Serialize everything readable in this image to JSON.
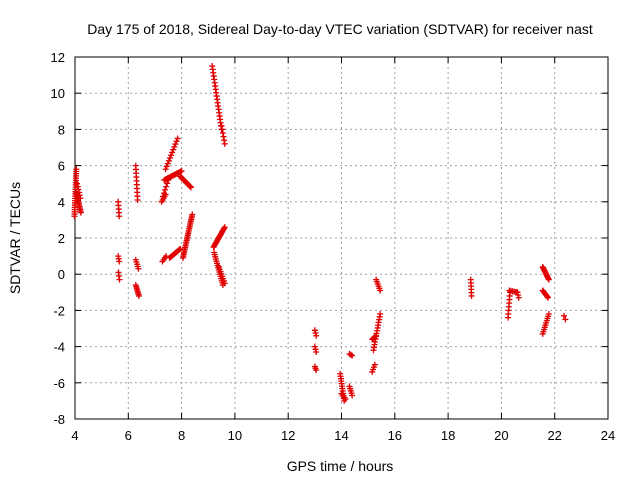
{
  "chart_data": {
    "type": "scatter",
    "title": "Day 175 of 2018, Sidereal Day-to-day VTEC variation (SDTVAR) for receiver nast",
    "xlabel": "GPS time / hours",
    "ylabel": "SDTVAR / TECUs",
    "xlim": [
      4,
      24
    ],
    "ylim": [
      -8,
      12
    ],
    "xticks": [
      4,
      6,
      8,
      10,
      12,
      14,
      16,
      18,
      20,
      22,
      24
    ],
    "yticks": [
      -8,
      -6,
      -4,
      -2,
      0,
      2,
      4,
      6,
      8,
      10,
      12
    ],
    "grid": true,
    "marker": "+",
    "series_color": "#e00000",
    "segments": [
      {
        "x0": 3.98,
        "x1": 4.05,
        "y0": 3.2,
        "y1": 5.8,
        "n": 22
      },
      {
        "x0": 4.05,
        "x1": 4.22,
        "y0": 4.5,
        "y1": 3.4,
        "n": 14
      },
      {
        "x0": 4.08,
        "x1": 4.2,
        "y0": 5.0,
        "y1": 4.2,
        "n": 6
      },
      {
        "x0": 5.62,
        "x1": 5.66,
        "y0": 4.0,
        "y1": 3.2,
        "n": 5
      },
      {
        "x0": 5.62,
        "x1": 5.66,
        "y0": 1.0,
        "y1": 0.7,
        "n": 3
      },
      {
        "x0": 5.63,
        "x1": 5.67,
        "y0": 0.1,
        "y1": -0.3,
        "n": 3
      },
      {
        "x0": 6.28,
        "x1": 6.35,
        "y0": 6.0,
        "y1": 4.1,
        "n": 10
      },
      {
        "x0": 6.28,
        "x1": 6.38,
        "y0": 0.8,
        "y1": 0.3,
        "n": 5
      },
      {
        "x0": 6.28,
        "x1": 6.4,
        "y0": -0.6,
        "y1": -1.2,
        "n": 8
      },
      {
        "x0": 7.25,
        "x1": 7.4,
        "y0": 4.0,
        "y1": 4.4,
        "n": 5
      },
      {
        "x0": 7.28,
        "x1": 7.42,
        "y0": 0.7,
        "y1": 1.0,
        "n": 4
      },
      {
        "x0": 7.4,
        "x1": 7.85,
        "y0": 5.8,
        "y1": 7.5,
        "n": 12
      },
      {
        "x0": 7.35,
        "x1": 8.0,
        "y0": 5.2,
        "y1": 5.7,
        "n": 20
      },
      {
        "x0": 7.3,
        "x1": 7.5,
        "y0": 4.3,
        "y1": 5.2,
        "n": 6
      },
      {
        "x0": 7.55,
        "x1": 7.95,
        "y0": 0.9,
        "y1": 1.4,
        "n": 12
      },
      {
        "x0": 7.95,
        "x1": 8.35,
        "y0": 5.4,
        "y1": 4.8,
        "n": 16
      },
      {
        "x0": 8.05,
        "x1": 8.4,
        "y0": 0.9,
        "y1": 3.3,
        "n": 26
      },
      {
        "x0": 9.15,
        "x1": 9.5,
        "y0": 11.5,
        "y1": 8.0,
        "n": 20
      },
      {
        "x0": 9.5,
        "x1": 9.62,
        "y0": 8.2,
        "y1": 7.2,
        "n": 6
      },
      {
        "x0": 9.2,
        "x1": 9.62,
        "y0": 1.5,
        "y1": 2.6,
        "n": 18
      },
      {
        "x0": 9.22,
        "x1": 9.55,
        "y0": 1.2,
        "y1": -0.6,
        "n": 16
      },
      {
        "x0": 9.4,
        "x1": 9.62,
        "y0": 0.4,
        "y1": -0.5,
        "n": 8
      },
      {
        "x0": 13.0,
        "x1": 13.05,
        "y0": -3.1,
        "y1": -3.4,
        "n": 3
      },
      {
        "x0": 13.0,
        "x1": 13.05,
        "y0": -4.0,
        "y1": -4.3,
        "n": 3
      },
      {
        "x0": 13.0,
        "x1": 13.05,
        "y0": -5.1,
        "y1": -5.3,
        "n": 3
      },
      {
        "x0": 13.95,
        "x1": 14.1,
        "y0": -5.5,
        "y1": -7.0,
        "n": 12
      },
      {
        "x0": 14.0,
        "x1": 14.15,
        "y0": -6.6,
        "y1": -6.9,
        "n": 5
      },
      {
        "x0": 14.3,
        "x1": 14.4,
        "y0": -6.2,
        "y1": -6.7,
        "n": 5
      },
      {
        "x0": 14.3,
        "x1": 14.4,
        "y0": -4.4,
        "y1": -4.5,
        "n": 3
      },
      {
        "x0": 15.15,
        "x1": 15.25,
        "y0": -5.4,
        "y1": -5.0,
        "n": 4
      },
      {
        "x0": 15.2,
        "x1": 15.45,
        "y0": -4.2,
        "y1": -2.2,
        "n": 14
      },
      {
        "x0": 15.15,
        "x1": 15.3,
        "y0": -3.6,
        "y1": -3.4,
        "n": 5
      },
      {
        "x0": 15.3,
        "x1": 15.45,
        "y0": -0.3,
        "y1": -0.9,
        "n": 6
      },
      {
        "x0": 18.85,
        "x1": 18.88,
        "y0": -0.3,
        "y1": -1.2,
        "n": 6
      },
      {
        "x0": 20.25,
        "x1": 20.32,
        "y0": -2.4,
        "y1": -1.0,
        "n": 8
      },
      {
        "x0": 20.3,
        "x1": 20.6,
        "y0": -0.9,
        "y1": -1.0,
        "n": 6
      },
      {
        "x0": 20.6,
        "x1": 20.65,
        "y0": -1.0,
        "y1": -1.3,
        "n": 3
      },
      {
        "x0": 21.55,
        "x1": 21.78,
        "y0": 0.4,
        "y1": -0.3,
        "n": 12
      },
      {
        "x0": 21.55,
        "x1": 21.75,
        "y0": -0.9,
        "y1": -1.3,
        "n": 8
      },
      {
        "x0": 21.55,
        "x1": 21.78,
        "y0": -3.3,
        "y1": -2.2,
        "n": 10
      },
      {
        "x0": 22.35,
        "x1": 22.4,
        "y0": -2.3,
        "y1": -2.5,
        "n": 2
      }
    ]
  }
}
